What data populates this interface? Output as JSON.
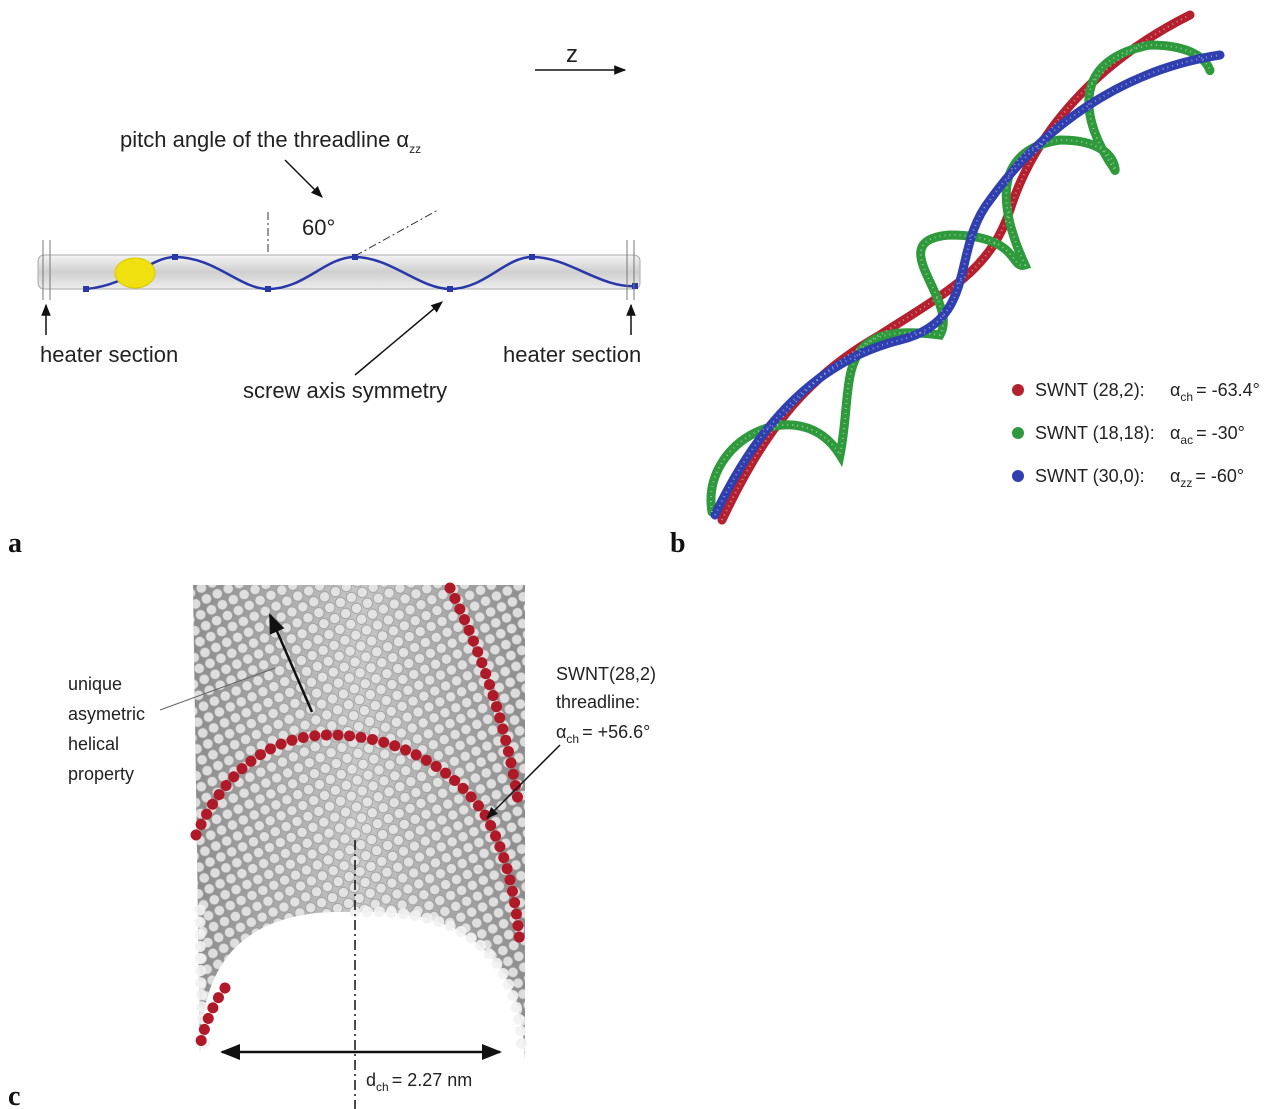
{
  "panel_a": {
    "label": "a",
    "axis": "z",
    "pitch_label": {
      "text": "pitch angle of the threadline ",
      "symbol": "α",
      "sub": "zz"
    },
    "angle": "60°",
    "heater_left": "heater section",
    "heater_right": "heater section",
    "screw": "screw axis symmetry"
  },
  "panel_b": {
    "label": "b",
    "legend": [
      {
        "name": "SWNT (28,2):",
        "symbol": "α",
        "sub": "ch",
        "value": "= -63.4°",
        "color": "#b5202e"
      },
      {
        "name": "SWNT (18,18):",
        "symbol": "α",
        "sub": "ac",
        "value": "= -30°",
        "color": "#2e9a3c"
      },
      {
        "name": "SWNT (30,0):",
        "symbol": "α",
        "sub": "zz",
        "value": "= -60°",
        "color": "#2f3fb0"
      }
    ]
  },
  "panel_c": {
    "label": "c",
    "note_lines": [
      "unique",
      "asymetric",
      "helical",
      "property"
    ],
    "threadline_lines": [
      "SWNT(28,2)",
      "threadline:"
    ],
    "threadline_angle": {
      "symbol": "α",
      "sub": "ch",
      "value": "= +56.6°"
    },
    "diameter": {
      "symbol": "d",
      "sub": "ch",
      "value": "= 2.27 nm"
    }
  }
}
